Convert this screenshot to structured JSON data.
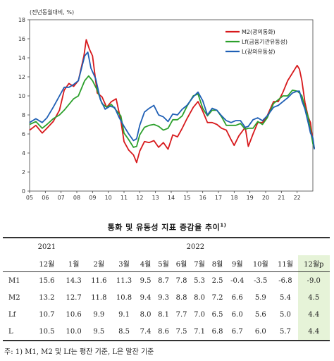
{
  "chart_data": {
    "type": "line",
    "unit_label": "(전년동월대비, %)",
    "ylim": [
      0,
      18
    ],
    "yticks": [
      "0",
      "2",
      "4",
      "6",
      "8",
      "10",
      "12",
      "14",
      "16",
      "18"
    ],
    "xlim": [
      2005.0,
      2023.0
    ],
    "xticks": [
      "05",
      "06",
      "07",
      "08",
      "09",
      "10",
      "11",
      "12",
      "13",
      "14",
      "15",
      "16",
      "17",
      "18",
      "19",
      "20",
      "21",
      "22"
    ],
    "legend_position": "top-right",
    "series": [
      {
        "name": "M2(광의통화)",
        "color": "#d7191c",
        "points": [
          [
            2005.0,
            6.4
          ],
          [
            2005.4,
            6.9
          ],
          [
            2005.8,
            6.1
          ],
          [
            2006.1,
            6.6
          ],
          [
            2006.5,
            7.3
          ],
          [
            2006.9,
            8.5
          ],
          [
            2007.2,
            10.6
          ],
          [
            2007.5,
            11.3
          ],
          [
            2007.8,
            11.0
          ],
          [
            2008.1,
            11.6
          ],
          [
            2008.45,
            14.2
          ],
          [
            2008.6,
            15.9
          ],
          [
            2008.8,
            14.9
          ],
          [
            2009.0,
            14.2
          ],
          [
            2009.3,
            10.3
          ],
          [
            2009.6,
            9.9
          ],
          [
            2009.9,
            8.8
          ],
          [
            2010.2,
            9.4
          ],
          [
            2010.5,
            9.7
          ],
          [
            2010.8,
            7.4
          ],
          [
            2011.0,
            5.2
          ],
          [
            2011.3,
            4.3
          ],
          [
            2011.6,
            3.8
          ],
          [
            2011.8,
            3.0
          ],
          [
            2012.0,
            4.2
          ],
          [
            2012.3,
            5.2
          ],
          [
            2012.6,
            5.1
          ],
          [
            2012.9,
            5.3
          ],
          [
            2013.2,
            4.6
          ],
          [
            2013.5,
            5.1
          ],
          [
            2013.8,
            4.4
          ],
          [
            2014.1,
            5.9
          ],
          [
            2014.4,
            5.7
          ],
          [
            2014.7,
            6.6
          ],
          [
            2015.0,
            7.6
          ],
          [
            2015.4,
            8.8
          ],
          [
            2015.7,
            9.4
          ],
          [
            2016.0,
            8.4
          ],
          [
            2016.3,
            7.2
          ],
          [
            2016.6,
            7.2
          ],
          [
            2016.9,
            7.0
          ],
          [
            2017.2,
            6.6
          ],
          [
            2017.5,
            6.4
          ],
          [
            2017.8,
            5.4
          ],
          [
            2018.0,
            4.8
          ],
          [
            2018.3,
            5.8
          ],
          [
            2018.7,
            6.7
          ],
          [
            2018.9,
            4.7
          ],
          [
            2019.2,
            6.0
          ],
          [
            2019.5,
            7.2
          ],
          [
            2019.8,
            7.2
          ],
          [
            2020.1,
            7.9
          ],
          [
            2020.5,
            9.4
          ],
          [
            2020.8,
            9.4
          ],
          [
            2021.1,
            10.4
          ],
          [
            2021.4,
            11.6
          ],
          [
            2021.7,
            12.4
          ],
          [
            2022.0,
            13.2
          ],
          [
            2022.15,
            12.8
          ],
          [
            2022.3,
            11.6
          ],
          [
            2022.5,
            9.3
          ],
          [
            2022.7,
            7.8
          ],
          [
            2022.85,
            7.2
          ],
          [
            2023.0,
            5.2
          ],
          [
            2023.1,
            4.5
          ]
        ]
      },
      {
        "name": "Lf(금융기관유동성)",
        "color": "#2ca02c",
        "points": [
          [
            2005.0,
            7.0
          ],
          [
            2005.4,
            7.3
          ],
          [
            2005.8,
            6.6
          ],
          [
            2006.1,
            7.0
          ],
          [
            2006.5,
            7.6
          ],
          [
            2006.9,
            8.0
          ],
          [
            2007.2,
            8.5
          ],
          [
            2007.5,
            9.1
          ],
          [
            2007.8,
            9.7
          ],
          [
            2008.1,
            10.0
          ],
          [
            2008.5,
            11.6
          ],
          [
            2008.75,
            12.1
          ],
          [
            2009.0,
            11.6
          ],
          [
            2009.3,
            10.6
          ],
          [
            2009.6,
            9.2
          ],
          [
            2009.9,
            8.8
          ],
          [
            2010.2,
            9.1
          ],
          [
            2010.5,
            8.5
          ],
          [
            2010.8,
            7.9
          ],
          [
            2011.0,
            6.1
          ],
          [
            2011.3,
            5.4
          ],
          [
            2011.6,
            4.6
          ],
          [
            2011.8,
            4.7
          ],
          [
            2012.0,
            5.9
          ],
          [
            2012.3,
            6.7
          ],
          [
            2012.6,
            6.9
          ],
          [
            2012.9,
            7.0
          ],
          [
            2013.2,
            6.8
          ],
          [
            2013.5,
            6.4
          ],
          [
            2013.8,
            6.6
          ],
          [
            2014.1,
            7.5
          ],
          [
            2014.4,
            7.5
          ],
          [
            2014.7,
            7.9
          ],
          [
            2015.0,
            8.9
          ],
          [
            2015.4,
            10.0
          ],
          [
            2015.7,
            10.2
          ],
          [
            2016.0,
            8.7
          ],
          [
            2016.3,
            7.9
          ],
          [
            2016.6,
            8.5
          ],
          [
            2016.9,
            8.5
          ],
          [
            2017.2,
            7.8
          ],
          [
            2017.5,
            6.9
          ],
          [
            2017.8,
            6.9
          ],
          [
            2018.1,
            6.9
          ],
          [
            2018.4,
            7.1
          ],
          [
            2018.7,
            6.5
          ],
          [
            2018.9,
            6.6
          ],
          [
            2019.2,
            6.6
          ],
          [
            2019.5,
            7.3
          ],
          [
            2019.8,
            7.0
          ],
          [
            2020.1,
            7.7
          ],
          [
            2020.5,
            9.2
          ],
          [
            2020.8,
            9.6
          ],
          [
            2021.1,
            10.0
          ],
          [
            2021.4,
            10.0
          ],
          [
            2021.7,
            10.6
          ],
          [
            2022.0,
            10.5
          ],
          [
            2022.15,
            10.3
          ],
          [
            2022.3,
            10.0
          ],
          [
            2022.5,
            8.8
          ],
          [
            2022.7,
            7.8
          ],
          [
            2022.85,
            6.4
          ],
          [
            2023.0,
            5.0
          ],
          [
            2023.1,
            4.4
          ]
        ]
      },
      {
        "name": "L(광의유동성)",
        "color": "#1f5fb5",
        "points": [
          [
            2005.0,
            7.2
          ],
          [
            2005.4,
            7.6
          ],
          [
            2005.8,
            7.2
          ],
          [
            2006.1,
            7.7
          ],
          [
            2006.5,
            8.8
          ],
          [
            2006.9,
            10.0
          ],
          [
            2007.2,
            10.9
          ],
          [
            2007.5,
            10.9
          ],
          [
            2007.8,
            11.2
          ],
          [
            2008.1,
            11.6
          ],
          [
            2008.5,
            14.2
          ],
          [
            2008.7,
            14.6
          ],
          [
            2008.9,
            12.9
          ],
          [
            2009.2,
            11.8
          ],
          [
            2009.5,
            9.6
          ],
          [
            2009.8,
            8.6
          ],
          [
            2010.1,
            8.9
          ],
          [
            2010.4,
            8.8
          ],
          [
            2010.7,
            7.7
          ],
          [
            2011.0,
            6.8
          ],
          [
            2011.3,
            6.0
          ],
          [
            2011.6,
            5.3
          ],
          [
            2011.8,
            5.5
          ],
          [
            2012.0,
            6.9
          ],
          [
            2012.3,
            8.3
          ],
          [
            2012.6,
            8.7
          ],
          [
            2012.9,
            9.0
          ],
          [
            2013.2,
            8.0
          ],
          [
            2013.5,
            7.8
          ],
          [
            2013.8,
            7.3
          ],
          [
            2014.1,
            8.1
          ],
          [
            2014.4,
            8.0
          ],
          [
            2014.7,
            8.6
          ],
          [
            2015.0,
            9.0
          ],
          [
            2015.4,
            9.9
          ],
          [
            2015.7,
            10.4
          ],
          [
            2016.0,
            9.5
          ],
          [
            2016.3,
            8.0
          ],
          [
            2016.6,
            8.7
          ],
          [
            2016.9,
            8.5
          ],
          [
            2017.2,
            7.9
          ],
          [
            2017.5,
            7.4
          ],
          [
            2017.8,
            7.2
          ],
          [
            2018.1,
            7.4
          ],
          [
            2018.4,
            7.4
          ],
          [
            2018.7,
            6.7
          ],
          [
            2018.9,
            6.8
          ],
          [
            2019.2,
            7.5
          ],
          [
            2019.5,
            7.7
          ],
          [
            2019.8,
            7.4
          ],
          [
            2020.1,
            7.9
          ],
          [
            2020.5,
            8.8
          ],
          [
            2020.8,
            9.0
          ],
          [
            2021.1,
            9.4
          ],
          [
            2021.4,
            9.8
          ],
          [
            2021.7,
            10.3
          ],
          [
            2022.0,
            10.5
          ],
          [
            2022.15,
            10.5
          ],
          [
            2022.3,
            9.5
          ],
          [
            2022.5,
            8.6
          ],
          [
            2022.7,
            7.2
          ],
          [
            2022.85,
            6.1
          ],
          [
            2023.0,
            5.6
          ],
          [
            2023.1,
            4.4
          ]
        ]
      }
    ]
  },
  "table": {
    "title": "통화 및 유동성 지표 증감율 추이",
    "title_sup": "1)",
    "year_2021": "2021",
    "year_2022": "2022",
    "months": [
      "12월",
      "1월",
      "2월",
      "3월",
      "4월",
      "5월",
      "6월",
      "7월",
      "8월",
      "9월",
      "10월",
      "11월",
      "12월p"
    ],
    "rows": [
      {
        "label": "M1",
        "values": [
          "15.6",
          "14.3",
          "11.6",
          "11.3",
          "9.5",
          "8.7",
          "7.8",
          "5.3",
          "2.5",
          "-0.4",
          "-3.5",
          "-6.8",
          "-9.0"
        ]
      },
      {
        "label": "M2",
        "values": [
          "13.2",
          "12.7",
          "11.8",
          "10.8",
          "9.4",
          "9.3",
          "8.8",
          "8.0",
          "7.2",
          "6.6",
          "5.9",
          "5.4",
          "4.5"
        ]
      },
      {
        "label": "Lf",
        "values": [
          "10.7",
          "10.6",
          "9.9",
          "9.1",
          "8.0",
          "8.1",
          "7.7",
          "7.0",
          "6.5",
          "6.0",
          "5.6",
          "5.0",
          "4.4"
        ]
      },
      {
        "label": "L",
        "values": [
          "10.5",
          "10.0",
          "9.5",
          "8.5",
          "7.4",
          "8.6",
          "7.5",
          "7.1",
          "6.8",
          "6.7",
          "6.0",
          "5.7",
          "4.4"
        ]
      }
    ],
    "highlight_color": "#e6f3d8",
    "note": "주: 1) M1, M2 및 Lf는 평잔 기준, L은 말잔 기준"
  }
}
